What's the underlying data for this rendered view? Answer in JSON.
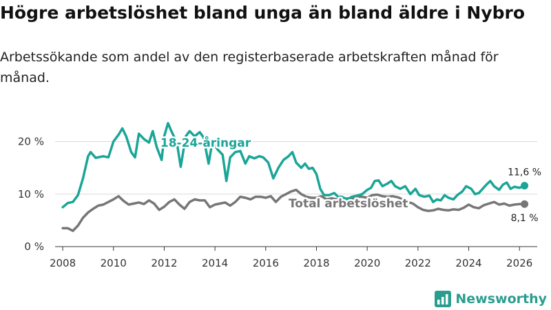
{
  "header": {
    "title": "Högre arbetslöshet bland unga än bland äldre i Nybro",
    "subtitle": "Arbetssökande som andel av den registerbaserade arbetskraften månad för månad."
  },
  "brand": {
    "name": "Newsworthy",
    "color": "#2a9d8f",
    "icon": "newsworthy-logo-icon"
  },
  "colors": {
    "young": "#1aa597",
    "total": "#767676",
    "grid": "#d9d9d9",
    "axis": "#333333"
  },
  "chart_data": {
    "type": "line",
    "title": "Högre arbetslöshet bland unga än bland äldre i Nybro",
    "subtitle": "Arbetssökande som andel av den registerbaserade arbetskraften månad för månad.",
    "xlabel": "",
    "ylabel": "",
    "xlim": [
      2007.7,
      2026.7
    ],
    "ylim": [
      0,
      24
    ],
    "x_ticks": [
      2008,
      2010,
      2012,
      2014,
      2016,
      2018,
      2020,
      2022,
      2024,
      2026
    ],
    "x_tick_labels": [
      "2008",
      "2010",
      "2012",
      "2014",
      "2016",
      "2018",
      "2020",
      "2022",
      "2024",
      "2026"
    ],
    "y_ticks": [
      0,
      10,
      20
    ],
    "y_tick_labels": [
      "0 %",
      "10 %",
      "20 %"
    ],
    "grid": "horizontal",
    "legend": "inline labels",
    "series": [
      {
        "name": "18-24-åringar",
        "label": "18-24-åringar",
        "color": "#1aa597",
        "end_label": "11,6 %",
        "points": [
          [
            2008.0,
            7.5
          ],
          [
            2008.2,
            8.3
          ],
          [
            2008.4,
            8.5
          ],
          [
            2008.6,
            9.8
          ],
          [
            2008.8,
            13.0
          ],
          [
            2009.0,
            17.2
          ],
          [
            2009.1,
            18.0
          ],
          [
            2009.3,
            16.9
          ],
          [
            2009.6,
            17.2
          ],
          [
            2009.8,
            17.0
          ],
          [
            2010.0,
            20.0
          ],
          [
            2010.2,
            21.3
          ],
          [
            2010.35,
            22.5
          ],
          [
            2010.5,
            21.0
          ],
          [
            2010.7,
            18.0
          ],
          [
            2010.85,
            17.0
          ],
          [
            2011.0,
            21.5
          ],
          [
            2011.2,
            20.5
          ],
          [
            2011.4,
            19.8
          ],
          [
            2011.55,
            22.0
          ],
          [
            2011.7,
            19.0
          ],
          [
            2011.9,
            16.5
          ],
          [
            2012.0,
            21.0
          ],
          [
            2012.15,
            23.5
          ],
          [
            2012.3,
            21.8
          ],
          [
            2012.5,
            19.8
          ],
          [
            2012.65,
            15.2
          ],
          [
            2012.85,
            21.0
          ],
          [
            2013.0,
            22.0
          ],
          [
            2013.2,
            21.0
          ],
          [
            2013.4,
            21.8
          ],
          [
            2013.55,
            20.8
          ],
          [
            2013.75,
            15.8
          ],
          [
            2013.9,
            20.0
          ],
          [
            2014.1,
            18.5
          ],
          [
            2014.3,
            17.5
          ],
          [
            2014.45,
            12.5
          ],
          [
            2014.6,
            17.0
          ],
          [
            2014.8,
            18.0
          ],
          [
            2015.0,
            18.2
          ],
          [
            2015.2,
            15.8
          ],
          [
            2015.35,
            17.2
          ],
          [
            2015.55,
            16.8
          ],
          [
            2015.75,
            17.2
          ],
          [
            2015.9,
            17.0
          ],
          [
            2016.1,
            16.0
          ],
          [
            2016.3,
            13.0
          ],
          [
            2016.5,
            15.0
          ],
          [
            2016.7,
            16.5
          ],
          [
            2016.9,
            17.2
          ],
          [
            2017.05,
            18.0
          ],
          [
            2017.2,
            16.0
          ],
          [
            2017.4,
            15.0
          ],
          [
            2017.55,
            15.8
          ],
          [
            2017.7,
            14.8
          ],
          [
            2017.85,
            15.0
          ],
          [
            2018.0,
            13.8
          ],
          [
            2018.15,
            11.0
          ],
          [
            2018.3,
            9.8
          ],
          [
            2018.5,
            9.8
          ],
          [
            2018.7,
            10.2
          ],
          [
            2018.85,
            9.5
          ],
          [
            2019.0,
            9.5
          ],
          [
            2019.2,
            9.0
          ],
          [
            2019.4,
            9.5
          ],
          [
            2019.6,
            9.7
          ],
          [
            2019.8,
            10.0
          ],
          [
            2020.0,
            10.8
          ],
          [
            2020.15,
            11.2
          ],
          [
            2020.3,
            12.5
          ],
          [
            2020.45,
            12.6
          ],
          [
            2020.6,
            11.5
          ],
          [
            2020.8,
            12.0
          ],
          [
            2020.95,
            12.5
          ],
          [
            2021.1,
            11.5
          ],
          [
            2021.3,
            11.0
          ],
          [
            2021.5,
            11.5
          ],
          [
            2021.7,
            10.0
          ],
          [
            2021.9,
            11.0
          ],
          [
            2022.05,
            9.8
          ],
          [
            2022.25,
            9.5
          ],
          [
            2022.45,
            9.7
          ],
          [
            2022.6,
            8.5
          ],
          [
            2022.75,
            9.0
          ],
          [
            2022.9,
            8.8
          ],
          [
            2023.05,
            9.8
          ],
          [
            2023.2,
            9.3
          ],
          [
            2023.4,
            9.0
          ],
          [
            2023.55,
            9.8
          ],
          [
            2023.75,
            10.5
          ],
          [
            2023.9,
            11.5
          ],
          [
            2024.1,
            11.0
          ],
          [
            2024.25,
            10.0
          ],
          [
            2024.4,
            10.2
          ],
          [
            2024.55,
            11.0
          ],
          [
            2024.7,
            11.8
          ],
          [
            2024.85,
            12.5
          ],
          [
            2025.0,
            11.5
          ],
          [
            2025.2,
            10.8
          ],
          [
            2025.35,
            11.8
          ],
          [
            2025.5,
            12.2
          ],
          [
            2025.65,
            11.0
          ],
          [
            2025.8,
            11.4
          ],
          [
            2026.0,
            11.2
          ],
          [
            2026.2,
            11.6
          ]
        ]
      },
      {
        "name": "Total arbetslöshet",
        "label": "Total arbetslöshet",
        "color": "#767676",
        "end_label": "8,1 %",
        "points": [
          [
            2008.0,
            3.5
          ],
          [
            2008.2,
            3.5
          ],
          [
            2008.4,
            3.0
          ],
          [
            2008.6,
            4.0
          ],
          [
            2008.8,
            5.5
          ],
          [
            2009.0,
            6.5
          ],
          [
            2009.2,
            7.2
          ],
          [
            2009.4,
            7.8
          ],
          [
            2009.6,
            8.0
          ],
          [
            2009.8,
            8.5
          ],
          [
            2010.0,
            9.0
          ],
          [
            2010.2,
            9.6
          ],
          [
            2010.4,
            8.7
          ],
          [
            2010.6,
            8.0
          ],
          [
            2010.8,
            8.2
          ],
          [
            2011.0,
            8.4
          ],
          [
            2011.2,
            8.1
          ],
          [
            2011.4,
            8.8
          ],
          [
            2011.6,
            8.2
          ],
          [
            2011.8,
            7.0
          ],
          [
            2012.0,
            7.6
          ],
          [
            2012.2,
            8.5
          ],
          [
            2012.4,
            9.0
          ],
          [
            2012.6,
            8.0
          ],
          [
            2012.8,
            7.2
          ],
          [
            2013.0,
            8.5
          ],
          [
            2013.2,
            9.0
          ],
          [
            2013.4,
            8.8
          ],
          [
            2013.6,
            8.8
          ],
          [
            2013.8,
            7.5
          ],
          [
            2014.0,
            8.0
          ],
          [
            2014.2,
            8.2
          ],
          [
            2014.4,
            8.4
          ],
          [
            2014.6,
            7.8
          ],
          [
            2014.8,
            8.5
          ],
          [
            2015.0,
            9.5
          ],
          [
            2015.2,
            9.3
          ],
          [
            2015.4,
            9.0
          ],
          [
            2015.6,
            9.5
          ],
          [
            2015.8,
            9.5
          ],
          [
            2016.0,
            9.3
          ],
          [
            2016.2,
            9.6
          ],
          [
            2016.4,
            8.5
          ],
          [
            2016.6,
            9.5
          ],
          [
            2016.8,
            10.0
          ],
          [
            2017.0,
            10.5
          ],
          [
            2017.2,
            10.8
          ],
          [
            2017.4,
            10.0
          ],
          [
            2017.6,
            9.5
          ],
          [
            2017.8,
            9.3
          ],
          [
            2018.0,
            9.3
          ],
          [
            2018.2,
            9.6
          ],
          [
            2018.4,
            9.0
          ],
          [
            2018.6,
            9.2
          ],
          [
            2018.8,
            9.0
          ],
          [
            2019.0,
            8.7
          ],
          [
            2019.2,
            9.2
          ],
          [
            2019.4,
            9.0
          ],
          [
            2019.6,
            9.5
          ],
          [
            2019.8,
            9.5
          ],
          [
            2020.0,
            9.3
          ],
          [
            2020.2,
            9.8
          ],
          [
            2020.4,
            9.9
          ],
          [
            2020.6,
            9.6
          ],
          [
            2020.8,
            9.5
          ],
          [
            2021.0,
            9.6
          ],
          [
            2021.2,
            9.4
          ],
          [
            2021.4,
            9.0
          ],
          [
            2021.6,
            8.5
          ],
          [
            2021.8,
            8.2
          ],
          [
            2022.0,
            7.5
          ],
          [
            2022.2,
            7.0
          ],
          [
            2022.4,
            6.8
          ],
          [
            2022.6,
            6.9
          ],
          [
            2022.8,
            7.2
          ],
          [
            2023.0,
            7.0
          ],
          [
            2023.2,
            6.9
          ],
          [
            2023.4,
            7.1
          ],
          [
            2023.6,
            7.0
          ],
          [
            2023.8,
            7.4
          ],
          [
            2024.0,
            8.0
          ],
          [
            2024.2,
            7.5
          ],
          [
            2024.4,
            7.3
          ],
          [
            2024.6,
            7.9
          ],
          [
            2024.8,
            8.2
          ],
          [
            2025.0,
            8.5
          ],
          [
            2025.2,
            8.0
          ],
          [
            2025.4,
            8.2
          ],
          [
            2025.6,
            7.8
          ],
          [
            2025.8,
            8.0
          ],
          [
            2026.0,
            8.1
          ],
          [
            2026.2,
            8.1
          ]
        ]
      }
    ]
  }
}
